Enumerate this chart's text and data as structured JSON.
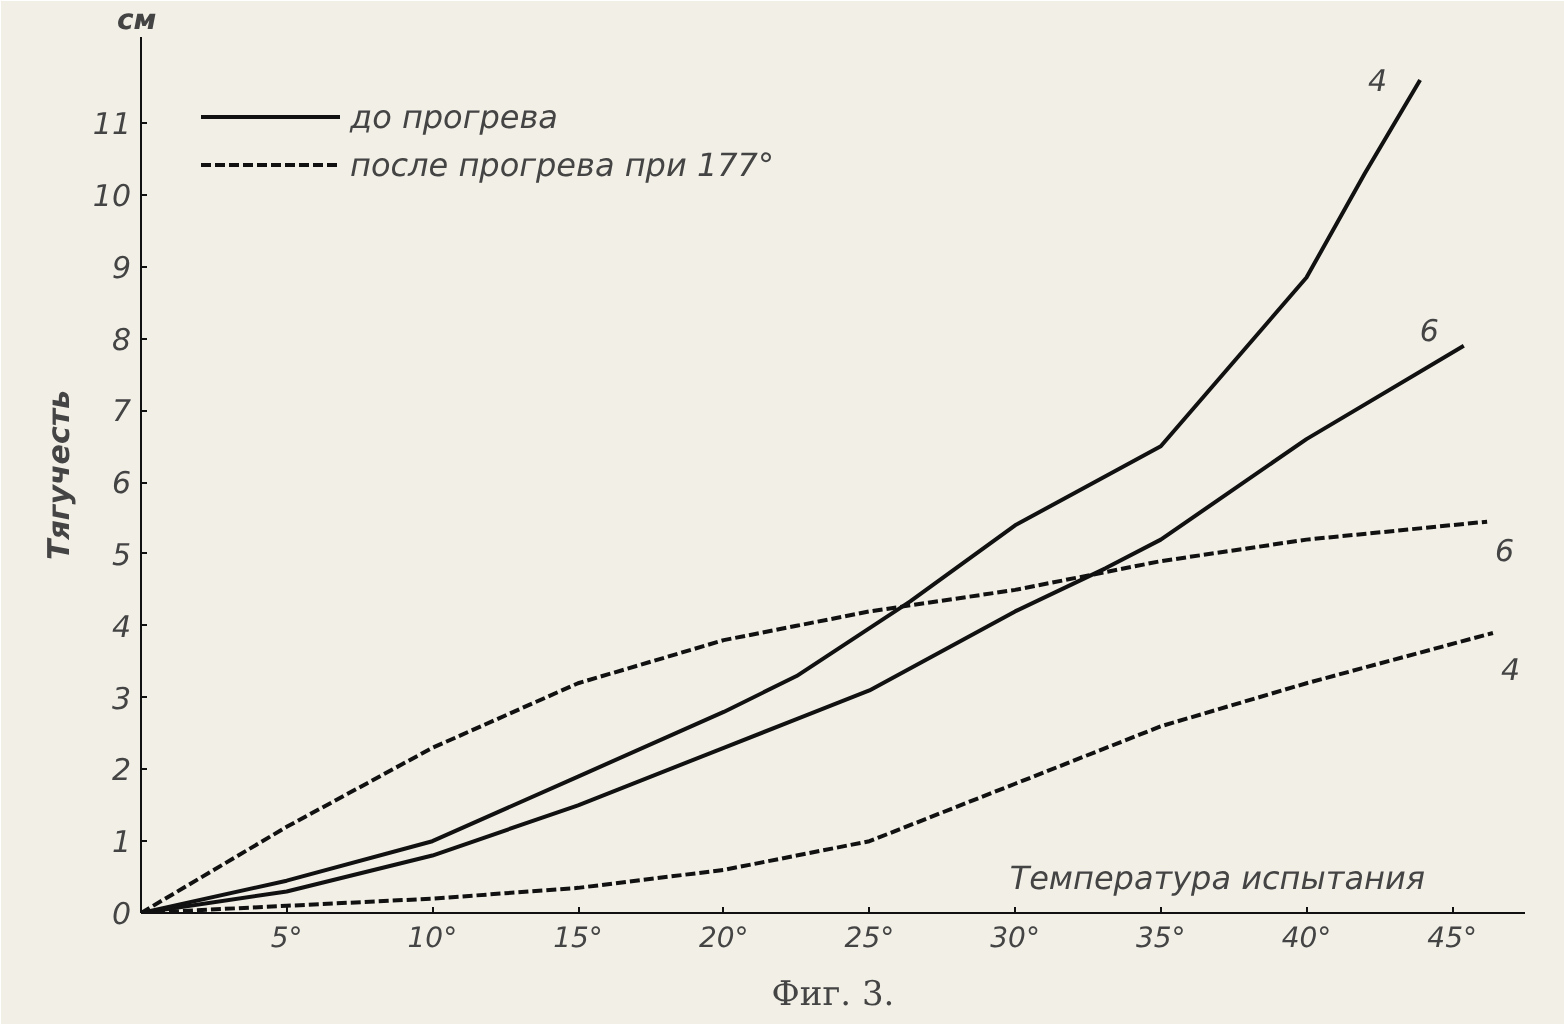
{
  "chart_data": {
    "type": "line",
    "ylabel": "Тягучесть",
    "xlabel": "Температура испытания",
    "xlim": [
      0,
      47.5
    ],
    "ylim": [
      0,
      12.2
    ],
    "xticks": [
      {
        "value": 5,
        "label": "5°"
      },
      {
        "value": 10,
        "label": "10°"
      },
      {
        "value": 15,
        "label": "15°"
      },
      {
        "value": 20,
        "label": "20°"
      },
      {
        "value": 25,
        "label": "25°"
      },
      {
        "value": 30,
        "label": "30°"
      },
      {
        "value": 35,
        "label": "35°"
      },
      {
        "value": 40,
        "label": "40°"
      },
      {
        "value": 45,
        "label": "45°"
      }
    ],
    "yticks": [
      0,
      1,
      2,
      3,
      4,
      5,
      6,
      7,
      8,
      9,
      10,
      11
    ],
    "series": [
      {
        "name": "до прогрева",
        "color": "#111111",
        "line_style": "solid",
        "x": [
          0,
          5,
          10,
          15,
          20,
          22.5,
          26.4,
          30,
          35,
          40,
          42,
          43.9
        ],
        "values": [
          0,
          0.45,
          1.0,
          1.9,
          2.8,
          3.3,
          4.34,
          5.4,
          6.5,
          8.85,
          10.3,
          11.6
        ]
      },
      {
        "color": "#111111",
        "line_style": "solid",
        "x": [
          0,
          5,
          10,
          15,
          20,
          22.5,
          25,
          30,
          33.1,
          35,
          40,
          45.4
        ],
        "values": [
          0,
          0.3,
          0.8,
          1.5,
          2.3,
          2.7,
          3.1,
          4.2,
          4.8,
          5.2,
          6.6,
          7.9
        ]
      },
      {
        "name": "после прогрева при 177°",
        "color": "#111111",
        "line_style": "dashed",
        "x": [
          0,
          5,
          10,
          15,
          20,
          22.5,
          25,
          30,
          35,
          40,
          46.2
        ],
        "values": [
          0,
          1.2,
          2.3,
          3.2,
          3.8,
          4.0,
          4.2,
          4.5,
          4.9,
          5.2,
          5.45
        ]
      },
      {
        "color": "#111111",
        "line_style": "dashed",
        "x": [
          0,
          5,
          10,
          15,
          20,
          22.5,
          25,
          30,
          35,
          40,
          46.4
        ],
        "values": [
          0,
          0.1,
          0.2,
          0.35,
          0.6,
          0.8,
          1.0,
          1.8,
          2.6,
          3.2,
          3.9
        ]
      }
    ],
    "annotations": [
      "4",
      "6",
      "6",
      "4",
      "см",
      "Фиг. 3."
    ],
    "legend": "top left",
    "grid": false,
    "marker": "none"
  }
}
